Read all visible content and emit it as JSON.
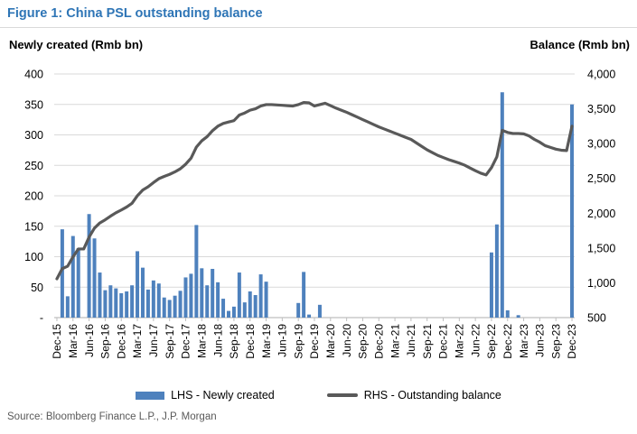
{
  "title": "Figure 1: China PSL outstanding balance",
  "source": "Source: Bloomberg Finance L.P., J.P. Morgan",
  "colors": {
    "title_blue": "#2E75B6",
    "bar_blue": "#4E81BD",
    "line_gray": "#595959",
    "gridline": "#D9D9D9",
    "axis_line": "#BFBFBF"
  },
  "axis_left": {
    "title": "Newly created (Rmb bn)",
    "tick_labels": [
      "400",
      "350",
      "300",
      "250",
      "200",
      "150",
      "100",
      "50",
      "-"
    ],
    "min": 0,
    "max": 400,
    "step": 50
  },
  "axis_right": {
    "title": "Balance (Rmb bn)",
    "tick_labels": [
      "4,000",
      "3,500",
      "3,000",
      "2,500",
      "2,000",
      "1,500",
      "1,000",
      "500"
    ],
    "min": 500,
    "max": 4000,
    "step": 500
  },
  "legend": {
    "items": [
      {
        "label": "LHS - Newly created",
        "swatch": "bar",
        "color": "#4E81BD"
      },
      {
        "label": "RHS - Outstanding balance",
        "swatch": "line",
        "color": "#595959"
      }
    ]
  },
  "chart_data": {
    "type": "combo-bar-line",
    "title": "China PSL outstanding balance",
    "grid": true,
    "legend_position": "bottom",
    "ylim_left": [
      0,
      400
    ],
    "ylim_right": [
      500,
      4000
    ],
    "x_tick_labels": [
      "Dec-15",
      "Mar-16",
      "Jun-16",
      "Sep-16",
      "Dec-16",
      "Mar-17",
      "Jun-17",
      "Sep-17",
      "Dec-17",
      "Mar-18",
      "Jun-18",
      "Sep-18",
      "Dec-18",
      "Mar-19",
      "Jun-19",
      "Sep-19",
      "Dec-19",
      "Mar-20",
      "Jun-20",
      "Sep-20",
      "Dec-20",
      "Mar-21",
      "Jun-21",
      "Sep-21",
      "Dec-21",
      "Mar-22",
      "Jun-22",
      "Sep-22",
      "Dec-22",
      "Mar-23",
      "Jun-23",
      "Sep-23",
      "Dec-23"
    ],
    "x": [
      "Dec-15",
      "Jan-16",
      "Feb-16",
      "Mar-16",
      "Apr-16",
      "May-16",
      "Jun-16",
      "Jul-16",
      "Aug-16",
      "Sep-16",
      "Oct-16",
      "Nov-16",
      "Dec-16",
      "Jan-17",
      "Feb-17",
      "Mar-17",
      "Apr-17",
      "May-17",
      "Jun-17",
      "Jul-17",
      "Aug-17",
      "Sep-17",
      "Oct-17",
      "Nov-17",
      "Dec-17",
      "Jan-18",
      "Feb-18",
      "Mar-18",
      "Apr-18",
      "May-18",
      "Jun-18",
      "Jul-18",
      "Aug-18",
      "Sep-18",
      "Oct-18",
      "Nov-18",
      "Dec-18",
      "Jan-19",
      "Feb-19",
      "Mar-19",
      "Apr-19",
      "May-19",
      "Jun-19",
      "Jul-19",
      "Aug-19",
      "Sep-19",
      "Oct-19",
      "Nov-19",
      "Dec-19",
      "Jan-20",
      "Feb-20",
      "Mar-20",
      "Apr-20",
      "May-20",
      "Jun-20",
      "Jul-20",
      "Aug-20",
      "Sep-20",
      "Oct-20",
      "Nov-20",
      "Dec-20",
      "Jan-21",
      "Feb-21",
      "Mar-21",
      "Apr-21",
      "May-21",
      "Jun-21",
      "Jul-21",
      "Aug-21",
      "Sep-21",
      "Oct-21",
      "Nov-21",
      "Dec-21",
      "Jan-22",
      "Feb-22",
      "Mar-22",
      "Apr-22",
      "May-22",
      "Jun-22",
      "Jul-22",
      "Aug-22",
      "Sep-22",
      "Oct-22",
      "Nov-22",
      "Dec-22",
      "Jan-23",
      "Feb-23",
      "Mar-23",
      "Apr-23",
      "May-23",
      "Jun-23",
      "Jul-23",
      "Aug-23",
      "Sep-23",
      "Oct-23",
      "Nov-23",
      "Dec-23"
    ],
    "series": [
      {
        "name": "LHS - Newly created",
        "type": "bar",
        "axis": "left",
        "color": "#4E81BD",
        "values": [
          0,
          145,
          35,
          134,
          114,
          0,
          170,
          130,
          74,
          45,
          53,
          48,
          40,
          43,
          53,
          109,
          82,
          46,
          61,
          56,
          33,
          29,
          36,
          44,
          66,
          72,
          152,
          81,
          53,
          80,
          58,
          31,
          11,
          18,
          74,
          25,
          43,
          37,
          71,
          59,
          0,
          0,
          0,
          0,
          0,
          24,
          75,
          5,
          0,
          21,
          0,
          0,
          0,
          0,
          0,
          0,
          0,
          0,
          0,
          0,
          0,
          0,
          0,
          0,
          0,
          0,
          0,
          0,
          0,
          0,
          0,
          0,
          0,
          0,
          0,
          0,
          0,
          0,
          0,
          0,
          0,
          107,
          153,
          370,
          12,
          0,
          4,
          0,
          0,
          0,
          0,
          0,
          0,
          0,
          0,
          0,
          350
        ]
      },
      {
        "name": "RHS - Outstanding balance",
        "type": "line",
        "axis": "right",
        "color": "#595959",
        "values": [
          1058,
          1203,
          1238,
          1372,
          1486,
          1486,
          1656,
          1786,
          1860,
          1905,
          1958,
          2006,
          2046,
          2089,
          2142,
          2251,
          2333,
          2379,
          2440,
          2496,
          2529,
          2558,
          2594,
          2638,
          2704,
          2790,
          2950,
          3040,
          3100,
          3185,
          3250,
          3290,
          3310,
          3330,
          3410,
          3440,
          3480,
          3500,
          3540,
          3560,
          3560,
          3555,
          3550,
          3545,
          3540,
          3560,
          3590,
          3585,
          3540,
          3560,
          3580,
          3545,
          3510,
          3480,
          3450,
          3415,
          3380,
          3345,
          3310,
          3275,
          3240,
          3210,
          3180,
          3150,
          3120,
          3090,
          3060,
          3010,
          2960,
          2910,
          2870,
          2830,
          2800,
          2770,
          2745,
          2720,
          2690,
          2650,
          2610,
          2575,
          2550,
          2655,
          2810,
          3190,
          3160,
          3145,
          3145,
          3140,
          3110,
          3060,
          3020,
          2970,
          2945,
          2920,
          2905,
          2900,
          3250
        ]
      }
    ]
  }
}
